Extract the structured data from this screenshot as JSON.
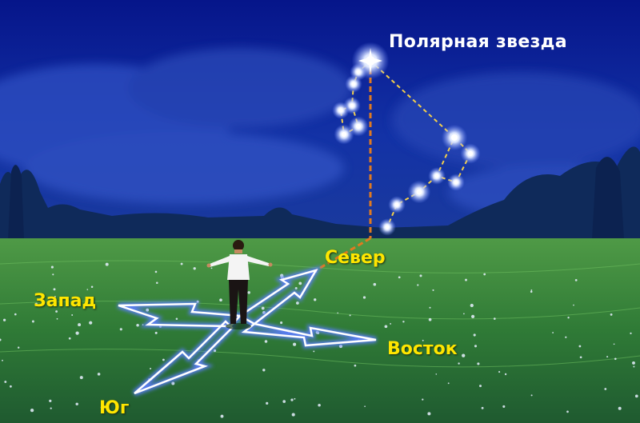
{
  "labels": {
    "polar_star": "Полярная звезда",
    "north": "Север",
    "west": "Запад",
    "east": "Восток",
    "south": "Юг"
  },
  "colors": {
    "sky_top": "#0a1f9c",
    "sky_bottom": "#1a3aa8",
    "field": "#3f8a3a",
    "star_line": "#f5d04a",
    "meridian_line": "#e07a20",
    "arrow_outline": "#ffffff",
    "arrow_glow": "#5b7dff",
    "label_white": "#ffffff",
    "label_yellow": "#ffe600"
  },
  "icons": {
    "star": "star-icon",
    "person": "person-figure",
    "compass": "compass-arrows"
  }
}
